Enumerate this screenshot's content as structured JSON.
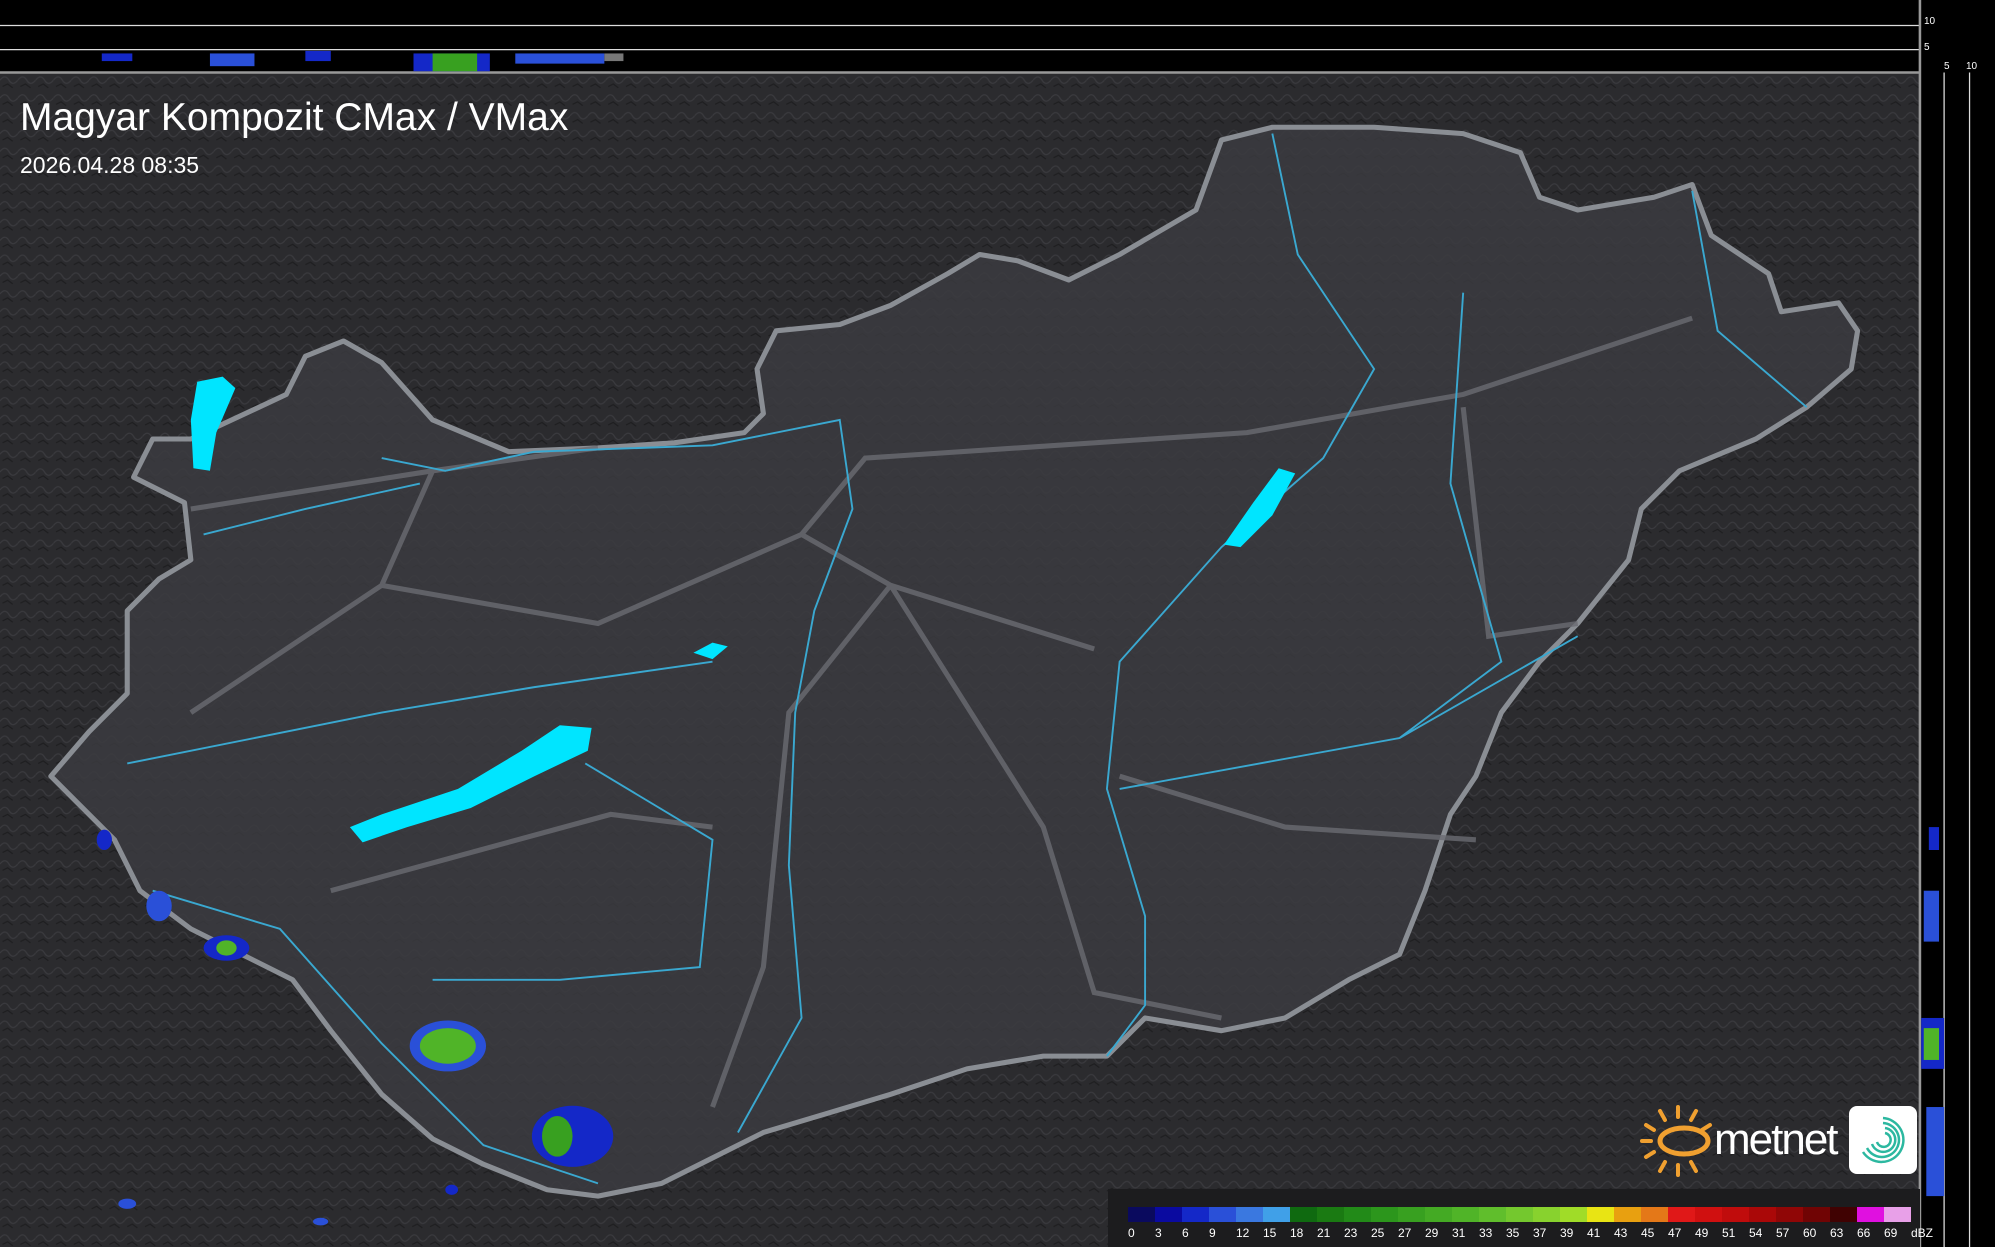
{
  "header": {
    "title": "Magyar Kompozit CMax / VMax",
    "timestamp": "2026.04.28 08:35"
  },
  "cross_section_axes": {
    "top_panel_ticks": [
      "10",
      "5"
    ],
    "side_panel_ticks": [
      "5",
      "10"
    ]
  },
  "legend": {
    "unit": "dBZ",
    "labels": [
      "0",
      "3",
      "6",
      "9",
      "12",
      "15",
      "18",
      "21",
      "23",
      "25",
      "27",
      "29",
      "31",
      "33",
      "35",
      "37",
      "39",
      "41",
      "43",
      "45",
      "47",
      "49",
      "51",
      "54",
      "57",
      "60",
      "63",
      "66",
      "69"
    ],
    "colors": [
      "#0a0a5e",
      "#0a0aa0",
      "#1428c8",
      "#2a50d8",
      "#3a78e0",
      "#40a0e8",
      "#0f6a10",
      "#1a7a12",
      "#228a18",
      "#2c961c",
      "#38a020",
      "#44aa24",
      "#50b428",
      "#60be2c",
      "#74c82e",
      "#88d22e",
      "#a0dc28",
      "#e8e414",
      "#e8a010",
      "#e47818",
      "#e01818",
      "#d01010",
      "#c00c0c",
      "#aa0808",
      "#900606",
      "#700404",
      "#400202",
      "#e010e0",
      "#e8a0e8",
      "#90e8e8"
    ]
  },
  "branding": {
    "logo_text": "metnet",
    "accent_color": "#f0a030"
  },
  "colors": {
    "lakes": "#00e5ff",
    "rivers": "#3aa8d0",
    "border": "#8a8e94",
    "land": "#3a3a3e",
    "background": "#2a2a2c"
  }
}
